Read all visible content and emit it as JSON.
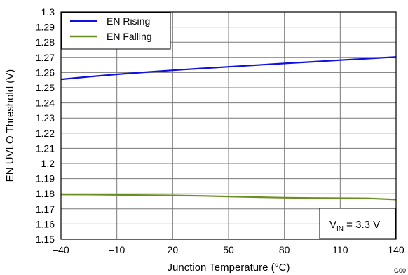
{
  "chart_data": {
    "type": "line",
    "xlabel": "Junction Temperature (°C)",
    "ylabel": "EN UVLO Threshold (V)",
    "xlim": [
      -40,
      140
    ],
    "ylim": [
      1.15,
      1.3
    ],
    "x_ticks": [
      -40,
      -10,
      20,
      50,
      80,
      110,
      140
    ],
    "x_tick_labels": [
      "–40",
      "–10",
      "20",
      "50",
      "80",
      "110",
      "140"
    ],
    "y_ticks": [
      1.15,
      1.16,
      1.17,
      1.18,
      1.19,
      1.2,
      1.21,
      1.22,
      1.23,
      1.24,
      1.25,
      1.26,
      1.27,
      1.28,
      1.29,
      1.3
    ],
    "y_tick_labels": [
      "1.15",
      "1.16",
      "1.17",
      "1.18",
      "1.19",
      "1.2",
      "1.21",
      "1.22",
      "1.23",
      "1.24",
      "1.25",
      "1.26",
      "1.27",
      "1.28",
      "1.29",
      "1.3"
    ],
    "grid": true,
    "legend_position": "top-left",
    "series": [
      {
        "name": "EN Rising",
        "color": "#1010e0",
        "x": [
          -40,
          -25,
          -10,
          5,
          20,
          35,
          50,
          65,
          80,
          95,
          110,
          125,
          140
        ],
        "y": [
          1.2555,
          1.2572,
          1.2588,
          1.2602,
          1.2615,
          1.2627,
          1.2638,
          1.2649,
          1.266,
          1.2671,
          1.2682,
          1.2692,
          1.2703
        ]
      },
      {
        "name": "EN Falling",
        "color": "#6b8e23",
        "x": [
          -40,
          -20,
          0,
          20,
          35,
          50,
          65,
          80,
          95,
          110,
          125,
          140
        ],
        "y": [
          1.1795,
          1.1794,
          1.1791,
          1.1789,
          1.1786,
          1.1782,
          1.1778,
          1.1774,
          1.1772,
          1.1771,
          1.177,
          1.1762
        ]
      }
    ],
    "annotation": {
      "prefix": "V",
      "subscript": "IN",
      "suffix": " = 3.3 V"
    },
    "figure_code": "G00"
  }
}
